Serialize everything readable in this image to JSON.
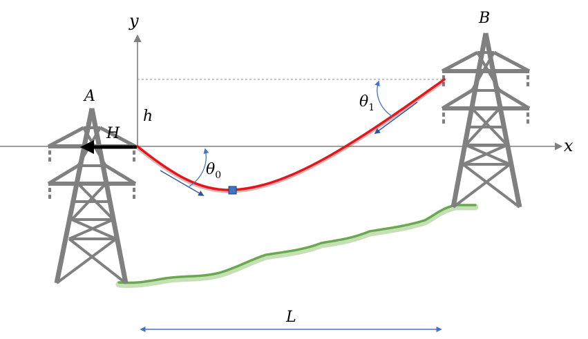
{
  "labels": {
    "x_axis": "x",
    "y_axis": "y",
    "tower_a": "A",
    "tower_b": "B",
    "height": "h",
    "horizontal_force": "H",
    "theta0_symbol": "θ",
    "theta0_subscript": "0",
    "theta1_symbol": "θ",
    "theta1_subscript": "1",
    "span": "L"
  },
  "colors": {
    "axis": "#7f7f7f",
    "tower": "#808080",
    "cable": "#e8141a",
    "cable_shadow": "#a83a3a",
    "ground": "#6aa84f",
    "ground_glow": "#c5e0b4",
    "angle_arrow": "#4472c4",
    "tangent_line": "#2f4f8f",
    "force_arrow": "#000000",
    "marker": "#4472c4",
    "dashed": "#8c8c8c"
  }
}
